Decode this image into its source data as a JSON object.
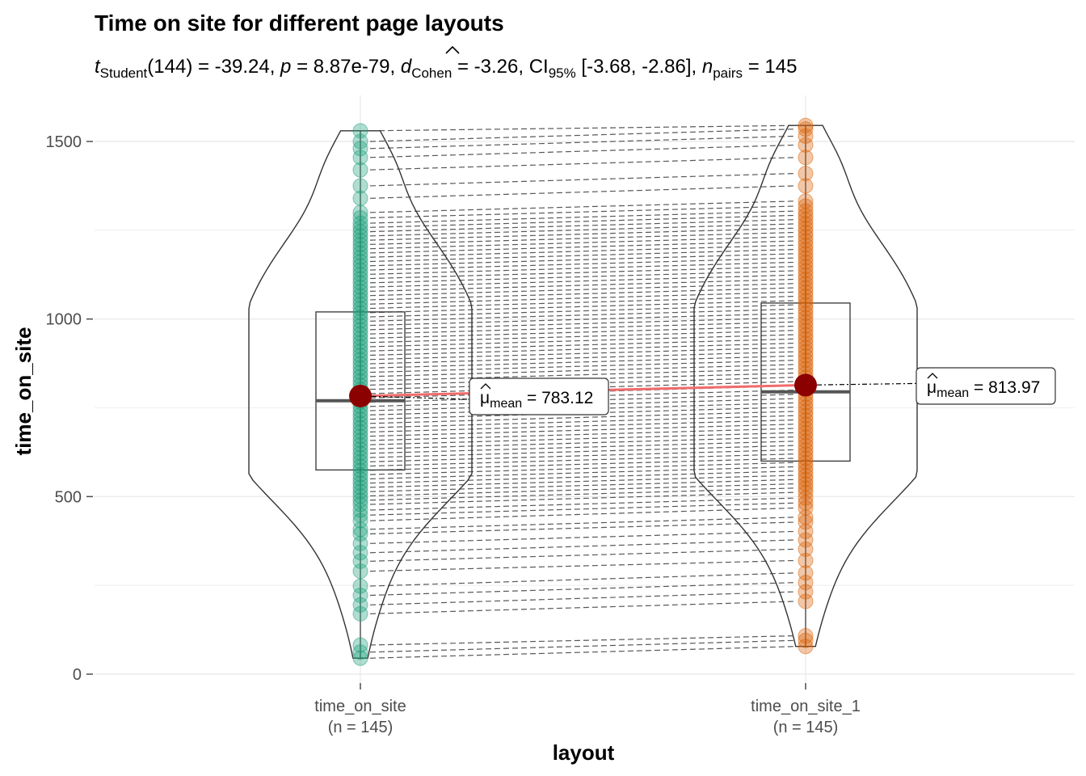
{
  "chart_data": {
    "type": "violin-paired",
    "title": "Time on site for different page layouts",
    "subtitle": {
      "t_symbol": "t",
      "t_sub": "Student",
      "df_text": "(144) = -39.24, ",
      "p_symbol": "p",
      "p_text": " = 8.87e-79, ",
      "d_symbol": "d",
      "d_sub": "Cohen",
      "d_text": " = -3.26, CI",
      "ci_sub": "95%",
      "ci_text": " [-3.68, -2.86], ",
      "n_symbol": "n",
      "n_sub": "pairs",
      "n_text": " = 145"
    },
    "xlabel": "layout",
    "ylabel": "time_on_site",
    "ylim": [
      -5,
      1560
    ],
    "yticks": [
      0,
      500,
      1000,
      1500
    ],
    "grid": true,
    "categories": [
      {
        "name": "time_on_site",
        "n_label": "(n = 145)",
        "color": "#1b9e77"
      },
      {
        "name": "time_on_site_1",
        "n_label": "(n = 145)",
        "color": "#d95f02"
      }
    ],
    "means": [
      783.12,
      813.97
    ],
    "mean_labels": [
      {
        "symbol": "μ",
        "sub": "mean",
        "value_text": " = 783.12"
      },
      {
        "symbol": "μ",
        "sub": "mean",
        "value_text": " = 813.97"
      }
    ],
    "boxplots": [
      {
        "q1": 575,
        "median": 770,
        "q3": 1020
      },
      {
        "q1": 600,
        "median": 795,
        "q3": 1045
      }
    ],
    "violin_range": [
      [
        45,
        1530
      ],
      [
        78,
        1545
      ]
    ],
    "pairs": [
      [
        45,
        78
      ],
      [
        62,
        95
      ],
      [
        82,
        108
      ],
      [
        170,
        205
      ],
      [
        195,
        232
      ],
      [
        222,
        258
      ],
      [
        248,
        285
      ],
      [
        290,
        320
      ],
      [
        318,
        352
      ],
      [
        342,
        378
      ],
      [
        368,
        402
      ],
      [
        395,
        428
      ],
      [
        408,
        442
      ],
      [
        432,
        468
      ],
      [
        448,
        482
      ],
      [
        462,
        496
      ],
      [
        478,
        512
      ],
      [
        490,
        524
      ],
      [
        502,
        536
      ],
      [
        514,
        548
      ],
      [
        526,
        560
      ],
      [
        538,
        572
      ],
      [
        550,
        584
      ],
      [
        562,
        596
      ],
      [
        574,
        608
      ],
      [
        586,
        620
      ],
      [
        598,
        632
      ],
      [
        610,
        644
      ],
      [
        622,
        656
      ],
      [
        634,
        668
      ],
      [
        646,
        680
      ],
      [
        658,
        692
      ],
      [
        670,
        704
      ],
      [
        682,
        716
      ],
      [
        694,
        728
      ],
      [
        706,
        740
      ],
      [
        718,
        752
      ],
      [
        730,
        764
      ],
      [
        742,
        776
      ],
      [
        754,
        788
      ],
      [
        766,
        800
      ],
      [
        778,
        812
      ],
      [
        790,
        824
      ],
      [
        802,
        836
      ],
      [
        814,
        848
      ],
      [
        826,
        860
      ],
      [
        838,
        872
      ],
      [
        850,
        884
      ],
      [
        862,
        896
      ],
      [
        874,
        908
      ],
      [
        886,
        920
      ],
      [
        898,
        932
      ],
      [
        910,
        944
      ],
      [
        922,
        956
      ],
      [
        934,
        968
      ],
      [
        946,
        980
      ],
      [
        958,
        992
      ],
      [
        970,
        1004
      ],
      [
        982,
        1016
      ],
      [
        994,
        1028
      ],
      [
        1006,
        1040
      ],
      [
        1018,
        1052
      ],
      [
        1030,
        1064
      ],
      [
        1042,
        1076
      ],
      [
        1054,
        1088
      ],
      [
        1066,
        1100
      ],
      [
        1078,
        1112
      ],
      [
        1090,
        1124
      ],
      [
        1102,
        1136
      ],
      [
        1114,
        1148
      ],
      [
        1126,
        1160
      ],
      [
        1138,
        1172
      ],
      [
        1150,
        1184
      ],
      [
        1162,
        1196
      ],
      [
        1174,
        1208
      ],
      [
        1186,
        1220
      ],
      [
        1198,
        1232
      ],
      [
        1210,
        1244
      ],
      [
        1222,
        1256
      ],
      [
        1234,
        1268
      ],
      [
        1246,
        1280
      ],
      [
        1258,
        1292
      ],
      [
        1270,
        1304
      ],
      [
        1285,
        1318
      ],
      [
        1300,
        1332
      ],
      [
        1340,
        1375
      ],
      [
        1375,
        1410
      ],
      [
        1420,
        1455
      ],
      [
        1455,
        1490
      ],
      [
        1480,
        1515
      ],
      [
        1500,
        1535
      ],
      [
        1530,
        1545
      ]
    ]
  }
}
